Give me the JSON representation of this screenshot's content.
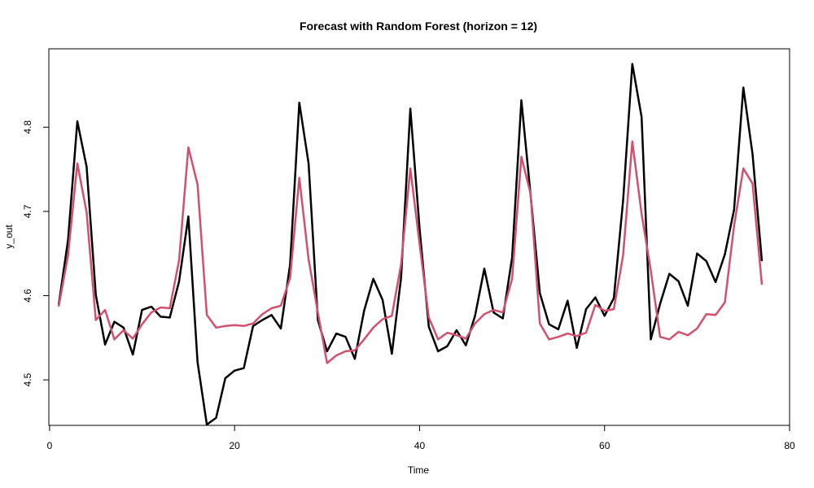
{
  "chart_data": {
    "type": "line",
    "title": "Forecast with Random Forest (horizon = 12)",
    "xlabel": "Time",
    "ylabel": "y_out",
    "xlim": [
      -0.08,
      80
    ],
    "ylim": [
      4.446,
      4.893
    ],
    "x_ticks": [
      0,
      20,
      40,
      60,
      80
    ],
    "x_tick_labels": [
      "0",
      "20",
      "40",
      "60",
      "80"
    ],
    "y_ticks": [
      4.5,
      4.6,
      4.7,
      4.8
    ],
    "y_tick_labels": [
      "4.5",
      "4.6",
      "4.7",
      "4.8"
    ],
    "grid": false,
    "legend": false,
    "x": [
      1,
      2,
      3,
      4,
      5,
      6,
      7,
      8,
      9,
      10,
      11,
      12,
      13,
      14,
      15,
      16,
      17,
      18,
      19,
      20,
      21,
      22,
      23,
      24,
      25,
      26,
      27,
      28,
      29,
      30,
      31,
      32,
      33,
      34,
      35,
      36,
      37,
      38,
      39,
      40,
      41,
      42,
      43,
      44,
      45,
      46,
      47,
      48,
      49,
      50,
      51,
      52,
      53,
      54,
      55,
      56,
      57,
      58,
      59,
      60,
      61,
      62,
      63,
      64,
      65,
      66,
      67,
      68,
      69,
      70,
      71,
      72,
      73,
      74,
      75,
      76,
      77
    ],
    "series": [
      {
        "color": "#000000",
        "values": [
          4.59,
          4.666,
          4.807,
          4.753,
          4.601,
          4.542,
          4.569,
          4.562,
          4.53,
          4.583,
          4.587,
          4.575,
          4.574,
          4.617,
          4.694,
          4.521,
          4.447,
          4.455,
          4.502,
          4.511,
          4.514,
          4.564,
          4.571,
          4.577,
          4.561,
          4.637,
          4.829,
          4.757,
          4.571,
          4.534,
          4.555,
          4.551,
          4.525,
          4.582,
          4.62,
          4.595,
          4.531,
          4.621,
          4.822,
          4.679,
          4.563,
          4.534,
          4.54,
          4.559,
          4.541,
          4.576,
          4.632,
          4.58,
          4.573,
          4.645,
          4.832,
          4.72,
          4.603,
          4.566,
          4.56,
          4.594,
          4.538,
          4.584,
          4.598,
          4.576,
          4.597,
          4.713,
          4.875,
          4.812,
          4.548,
          4.59,
          4.626,
          4.617,
          4.588,
          4.65,
          4.641,
          4.616,
          4.649,
          4.702,
          4.847,
          4.768,
          4.642
        ]
      },
      {
        "color": "#d2506f",
        "values": [
          4.588,
          4.648,
          4.757,
          4.699,
          4.571,
          4.583,
          4.548,
          4.559,
          4.549,
          4.566,
          4.58,
          4.586,
          4.585,
          4.642,
          4.776,
          4.732,
          4.577,
          4.562,
          4.564,
          4.565,
          4.564,
          4.567,
          4.578,
          4.585,
          4.588,
          4.621,
          4.74,
          4.643,
          4.58,
          4.52,
          4.529,
          4.534,
          4.535,
          4.548,
          4.562,
          4.572,
          4.576,
          4.637,
          4.751,
          4.661,
          4.574,
          4.548,
          4.556,
          4.553,
          4.549,
          4.567,
          4.578,
          4.583,
          4.58,
          4.62,
          4.765,
          4.721,
          4.567,
          4.548,
          4.551,
          4.555,
          4.552,
          4.556,
          4.589,
          4.582,
          4.584,
          4.648,
          4.783,
          4.697,
          4.63,
          4.551,
          4.548,
          4.557,
          4.553,
          4.561,
          4.578,
          4.577,
          4.592,
          4.683,
          4.751,
          4.733,
          4.614
        ]
      }
    ]
  }
}
